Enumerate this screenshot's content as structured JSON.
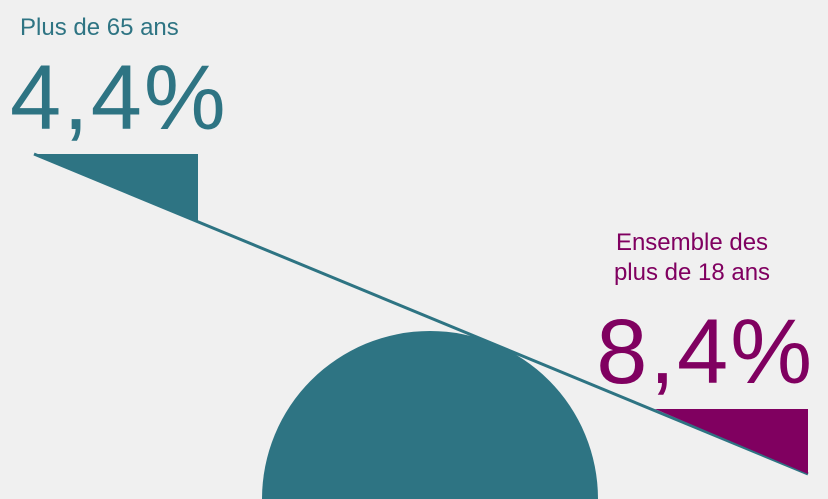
{
  "left": {
    "label": "Plus de 65 ans",
    "value": "4,4%",
    "color": "#2e7483"
  },
  "right": {
    "label_line1": "Ensemble des",
    "label_line2": "plus de 18 ans",
    "value": "8,4%",
    "color": "#800060"
  },
  "background": "#f0f0f0"
}
